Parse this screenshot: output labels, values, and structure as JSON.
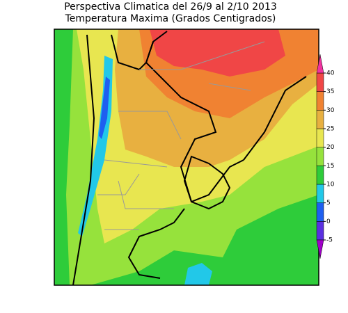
{
  "header": {
    "title": "Perspectiva Climatica del 26/9 al 2/10 2013",
    "subtitle": "Temperatura Maxima (Grados Centigrados)"
  },
  "colorbar": {
    "ticks": [
      -5,
      0,
      5,
      10,
      15,
      20,
      25,
      30,
      35,
      40
    ],
    "colors": [
      "#a000c8",
      "#5a30e0",
      "#1e5ff0",
      "#22c8e8",
      "#2ecc3a",
      "#96e23c",
      "#e8e650",
      "#e8b040",
      "#f08232",
      "#f04646",
      "#f032a0"
    ]
  }
}
